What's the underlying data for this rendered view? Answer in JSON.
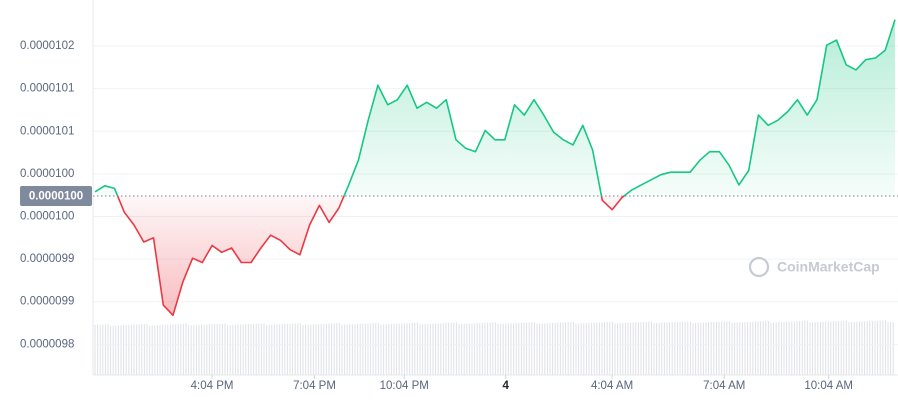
{
  "chart_data": {
    "type": "line",
    "values": [
      1.0029e-05,
      1.0036e-05,
      1.0033e-05,
      1.0005e-05,
      9.99e-06,
      9.97e-06,
      9.975e-06,
      9.896e-06,
      9.884e-06,
      9.923e-06,
      9.951e-06,
      9.946e-06,
      9.966e-06,
      9.958e-06,
      9.963e-06,
      9.946e-06,
      9.946e-06,
      9.963e-06,
      9.978e-06,
      9.972e-06,
      9.961e-06,
      9.955e-06,
      9.99e-06,
      1.0013e-05,
      9.993e-06,
      1.001e-05,
      1.0037e-05,
      1.0066e-05,
      1.0113e-05,
      1.0154e-05,
      1.0131e-05,
      1.0137e-05,
      1.0154e-05,
      1.0127e-05,
      1.0134e-05,
      1.0127e-05,
      1.0137e-05,
      1.009e-05,
      1.008e-05,
      1.0076e-05,
      1.0101e-05,
      1.009e-05,
      1.009e-05,
      1.0131e-05,
      1.0119e-05,
      1.0137e-05,
      1.0119e-05,
      1.0099e-05,
      1.009e-05,
      1.0084e-05,
      1.0107e-05,
      1.0078e-05,
      1.0019e-05,
      1.0008e-05,
      1.0022e-05,
      1.0031e-05,
      1.0037e-05,
      1.0043e-05,
      1.0049e-05,
      1.0052e-05,
      1.0052e-05,
      1.0052e-05,
      1.0066e-05,
      1.0076e-05,
      1.0076e-05,
      1.006e-05,
      1.0037e-05,
      1.0054e-05,
      1.0119e-05,
      1.0107e-05,
      1.0113e-05,
      1.0123e-05,
      1.0137e-05,
      1.0119e-05,
      1.0137e-05,
      1.0201e-05,
      1.0207e-05,
      1.0178e-05,
      1.0172e-05,
      1.0184e-05,
      1.0186e-05,
      1.0195e-05,
      1.0231e-05
    ],
    "color": "#16c784",
    "negative_color": "#ea3943",
    "xlim": [
      0,
      82
    ],
    "xticks": [
      {
        "value": 12,
        "label": "4:04 PM"
      },
      {
        "value": 22.5,
        "label": "7:04 PM"
      },
      {
        "value": 31.7,
        "label": "10:04 PM"
      },
      {
        "value": 42.1,
        "label": "4"
      },
      {
        "value": 53,
        "label": "4:04 AM"
      },
      {
        "value": 64.5,
        "label": "7:04 AM"
      },
      {
        "value": 75.2,
        "label": "10:04 AM"
      }
    ],
    "ylim": [
      9.814e-06,
      1.0254e-05
    ],
    "yticks": [
      1.02e-05,
      {
        "value": 1.015e-05,
        "label": "0.0000101"
      },
      1.01e-05,
      {
        "value": 1.005e-05,
        "label": "0.0000100"
      },
      {
        "value": 1e-05,
        "label": "0.0000100"
      },
      {
        "value": 9.95e-06,
        "label": "0.0000099"
      },
      9.9e-06,
      {
        "value": 9.85e-06,
        "label": "0.0000098"
      }
    ],
    "grid": true,
    "reference_line": {
      "value": 1.0024e-05,
      "label": "0.0000100"
    },
    "watermark": "CoinMarketCap"
  }
}
